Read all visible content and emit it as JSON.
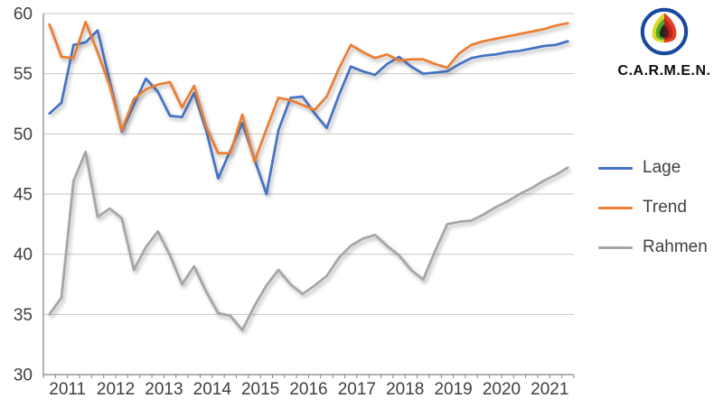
{
  "logo": {
    "text": "C.A.R.M.E.N."
  },
  "legend_title": "",
  "chart_data": {
    "type": "line",
    "title": "",
    "xlabel": "",
    "ylabel": "",
    "x_frequency": "quarterly",
    "points_per_category": 4,
    "x_categories": [
      "2011",
      "2012",
      "2013",
      "2014",
      "2015",
      "2016",
      "2017",
      "2018",
      "2019",
      "2020",
      "2021"
    ],
    "ylim": [
      30,
      60
    ],
    "yticks": [
      30,
      35,
      40,
      45,
      50,
      55,
      60
    ],
    "grid": true,
    "legend_position": "right",
    "axis_color": "#808080",
    "gridline_color": "#c6c6c6",
    "label_color": "#3f3f3f",
    "series": [
      {
        "name": "Lage",
        "color": "#4472C4",
        "values": [
          51.7,
          52.6,
          57.4,
          57.6,
          58.6,
          54.4,
          50.2,
          52.4,
          54.6,
          53.5,
          51.5,
          51.4,
          53.4,
          50.3,
          46.3,
          48.6,
          50.9,
          47.9,
          45.0,
          50.3,
          53.0,
          53.1,
          51.7,
          50.5,
          53.2,
          55.6,
          55.2,
          54.9,
          55.8,
          56.4,
          55.6,
          55.0,
          55.1,
          55.2,
          55.8,
          56.3,
          56.5,
          56.6,
          56.8,
          56.9,
          57.1,
          57.3,
          57.4,
          57.7
        ]
      },
      {
        "name": "Trend",
        "color": "#ED7D31",
        "values": [
          59.1,
          56.4,
          56.3,
          59.3,
          56.8,
          54.0,
          50.3,
          52.9,
          53.7,
          54.1,
          54.3,
          52.2,
          54.0,
          50.6,
          48.4,
          48.4,
          51.6,
          47.7,
          50.4,
          53.0,
          52.8,
          52.4,
          52.0,
          53.1,
          55.4,
          57.4,
          56.8,
          56.3,
          56.6,
          56.1,
          56.2,
          56.2,
          55.8,
          55.5,
          56.7,
          57.4,
          57.7,
          57.9,
          58.1,
          58.3,
          58.5,
          58.7,
          59.0,
          59.2
        ]
      },
      {
        "name": "Rahmen",
        "color": "#A5A5A5",
        "values": [
          35.0,
          36.4,
          46.1,
          48.5,
          43.1,
          43.8,
          43.0,
          38.7,
          40.6,
          41.9,
          39.9,
          37.5,
          39.0,
          36.9,
          35.1,
          34.9,
          33.7,
          35.7,
          37.4,
          38.7,
          37.5,
          36.7,
          37.4,
          38.2,
          39.7,
          40.7,
          41.3,
          41.6,
          40.7,
          39.9,
          38.7,
          37.9,
          40.3,
          42.5,
          42.7,
          42.8,
          43.3,
          43.9,
          44.4,
          45.0,
          45.5,
          46.1,
          46.6,
          47.2
        ]
      }
    ]
  }
}
